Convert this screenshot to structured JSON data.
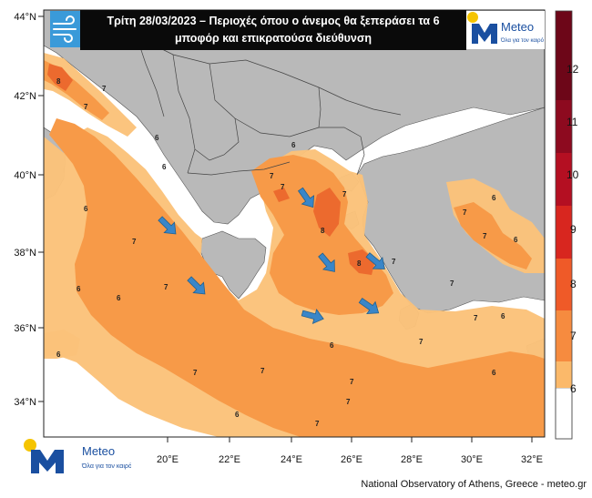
{
  "title": {
    "line1": "Τρίτη 28/03/2023 – Περιοχές όπου ο άνεμος θα ξεπεράσει τα 6",
    "line2": "μποφόρ και επικρατούσα διεύθυνση"
  },
  "logo": {
    "name": "Meteo",
    "tagline": "Όλα για τον καιρό",
    "accent": "#f5c400",
    "brand": "#1a4fa0"
  },
  "credit": "National Observatory of Athens, Greece - meteo.gr",
  "axes": {
    "lat_labels": [
      "44°N",
      "42°N",
      "40°N",
      "38°N",
      "36°N",
      "34°N"
    ],
    "lon_labels": [
      "20°E",
      "22°E",
      "24°E",
      "26°E",
      "28°E",
      "30°E",
      "32°E"
    ]
  },
  "legend": {
    "levels": [
      "6",
      "7",
      "8",
      "9",
      "10",
      "11",
      "12"
    ],
    "colors": [
      "#ffffff",
      "#fbb96a",
      "#f68b3f",
      "#ef5a28",
      "#d8261f",
      "#b40f22",
      "#8d0a1f",
      "#6d0618"
    ]
  },
  "palette": {
    "land": "#b9b9b9",
    "sea": "#ffffff",
    "bf6": "#fbc27a",
    "bf7": "#f79a48",
    "bf8": "#ec6a2e",
    "arrow": "#3a86c8"
  },
  "contour_labels": [
    {
      "text": "6"
    },
    {
      "text": "8"
    },
    {
      "text": "7"
    },
    {
      "text": "7"
    },
    {
      "text": "6"
    },
    {
      "text": "6"
    },
    {
      "text": "7"
    },
    {
      "text": "6"
    },
    {
      "text": "6"
    },
    {
      "text": "7"
    },
    {
      "text": "8"
    },
    {
      "text": "7"
    },
    {
      "text": "6"
    },
    {
      "text": "7"
    },
    {
      "text": "6"
    },
    {
      "text": "6"
    },
    {
      "text": "7"
    },
    {
      "text": "6"
    },
    {
      "text": "7"
    },
    {
      "text": "8"
    },
    {
      "text": "7"
    },
    {
      "text": "6"
    },
    {
      "text": "7"
    },
    {
      "text": "7"
    },
    {
      "text": "7"
    },
    {
      "text": "6"
    },
    {
      "text": "7"
    },
    {
      "text": "6"
    },
    {
      "text": "7"
    },
    {
      "text": "6"
    },
    {
      "text": "7"
    },
    {
      "text": "7"
    },
    {
      "text": "6"
    },
    {
      "text": "7"
    },
    {
      "text": "7"
    }
  ],
  "wind_arrows": [
    {
      "direction": "SE"
    },
    {
      "direction": "SE"
    },
    {
      "direction": "SE"
    },
    {
      "direction": "E"
    },
    {
      "direction": "SE"
    },
    {
      "direction": "SE"
    },
    {
      "direction": "SE"
    }
  ]
}
